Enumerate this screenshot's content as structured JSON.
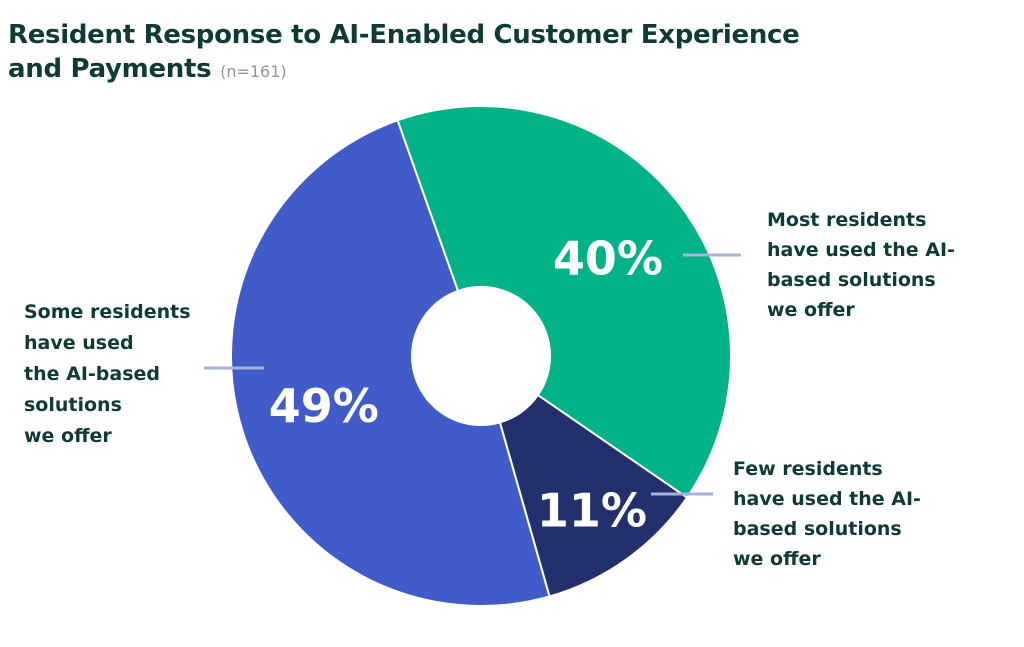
{
  "title": "Resident Response to AI-Enabled Customer Experience and Payments",
  "title_line1": "Resident Response to AI-Enabled Customer Experience",
  "title_line2": "and Payments",
  "sample_note": "(n=161)",
  "colors": {
    "most": "#00b386",
    "few": "#22306e",
    "some": "#415bc8",
    "leader": "#a9b2d8",
    "text": "#0f3b35"
  },
  "chart_data": {
    "type": "pie",
    "title": "Resident Response to AI-Enabled Customer Experience and Payments",
    "subtitle": "(n=161)",
    "donut": true,
    "slices": [
      {
        "key": "most",
        "label": "Most residents have used the AI-based solutions we offer",
        "value": 40,
        "value_label": "40%",
        "label_lines": [
          "Most residents",
          "have used the AI-",
          "based solutions",
          "we offer"
        ]
      },
      {
        "key": "few",
        "label": "Few residents have used the AI-based solutions we offer",
        "value": 11,
        "value_label": "11%",
        "label_lines": [
          "Few residents",
          "have used the AI-",
          "based solutions",
          "we offer"
        ]
      },
      {
        "key": "some",
        "label": "Some residents have used the AI-based solutions we offer",
        "value": 49,
        "value_label": "49%",
        "label_lines": [
          "Some residents",
          "have used",
          "the AI-based",
          "solutions",
          "we offer"
        ]
      }
    ]
  }
}
